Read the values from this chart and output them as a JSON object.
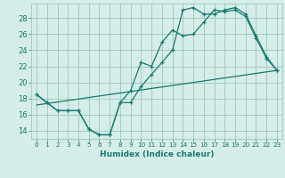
{
  "xlabel": "Humidex (Indice chaleur)",
  "background_color": "#d4ede8",
  "grid_color": "#9ec8be",
  "line_color": "#1a7a6e",
  "xlim": [
    -0.5,
    23.5
  ],
  "ylim": [
    13.0,
    29.8
  ],
  "xticks": [
    0,
    1,
    2,
    3,
    4,
    5,
    6,
    7,
    8,
    9,
    10,
    11,
    12,
    13,
    14,
    15,
    16,
    17,
    18,
    19,
    20,
    21,
    22,
    23
  ],
  "yticks": [
    14,
    16,
    18,
    20,
    22,
    24,
    26,
    28
  ],
  "line1_x": [
    0,
    1,
    2,
    3,
    4,
    5,
    6,
    7,
    8,
    9,
    10,
    11,
    12,
    13,
    14,
    15,
    16,
    17,
    18,
    19,
    20,
    21,
    22,
    23
  ],
  "line1_y": [
    18.5,
    17.5,
    16.5,
    16.5,
    16.5,
    14.2,
    13.5,
    13.5,
    17.5,
    19.0,
    22.5,
    22.0,
    25.0,
    26.5,
    25.8,
    26.0,
    27.5,
    29.0,
    28.8,
    29.0,
    28.2,
    25.5,
    23.0,
    21.5
  ],
  "line2_x": [
    0,
    1,
    2,
    3,
    4,
    5,
    6,
    7,
    8,
    9,
    10,
    11,
    12,
    13,
    14,
    15,
    16,
    17,
    18,
    19,
    20,
    21,
    22,
    23
  ],
  "line2_y": [
    18.5,
    17.5,
    16.5,
    16.5,
    16.5,
    14.2,
    13.5,
    13.5,
    17.5,
    17.5,
    19.5,
    21.0,
    22.5,
    24.0,
    29.0,
    29.3,
    28.5,
    28.5,
    29.0,
    29.3,
    28.5,
    25.8,
    23.2,
    21.5
  ],
  "line3_x": [
    0,
    23
  ],
  "line3_y": [
    17.2,
    21.5
  ]
}
